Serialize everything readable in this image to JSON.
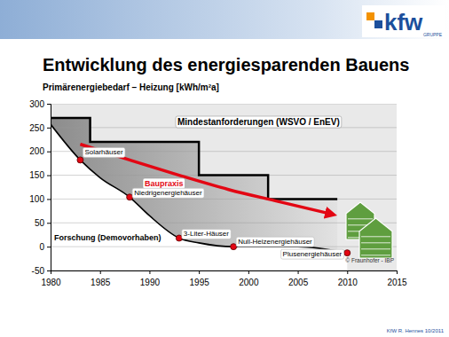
{
  "chart_data": {
    "type": "line",
    "title": "Entwicklung des energiesparenden Bauens",
    "subtitle": "Primärenergiebedarf – Heizung [kWh/m²a]",
    "xlim": [
      1980,
      2015
    ],
    "xticks": [
      1980,
      1985,
      1990,
      1995,
      2000,
      2005,
      2010,
      2015
    ],
    "ylim": [
      -50,
      300
    ],
    "yticks": [
      -50,
      0,
      50,
      100,
      150,
      200,
      250,
      300
    ],
    "grid": true,
    "series": [
      {
        "name": "Mindestanforderungen (WSVO / EnEV)",
        "type": "area",
        "color": "#000000",
        "line_style": "step",
        "x": [
          1980,
          1984,
          1995,
          2002,
          2009
        ],
        "values": [
          270,
          220,
          150,
          100,
          100
        ]
      },
      {
        "name": "Forschung (Demovorhaben)",
        "type": "area",
        "color": "#000000",
        "line_style": "solid",
        "x": [
          1980,
          1983,
          1985,
          1988,
          1990,
          1993,
          1995,
          1998.5,
          2005,
          2010
        ],
        "values": [
          257,
          182,
          145,
          104,
          65,
          18,
          8,
          0,
          0,
          -13
        ]
      },
      {
        "name": "Baupraxis",
        "type": "line",
        "color": "#e30613",
        "line_style": "solid",
        "marker": "arrow",
        "x": [
          1983,
          1988,
          1993,
          1998,
          2003,
          2008.5
        ],
        "values": [
          215,
          182,
          150,
          120,
          95,
          68
        ]
      }
    ],
    "annotations": [
      {
        "text": "Solarhäuser",
        "x": 1983,
        "y": 182,
        "marker": "circle"
      },
      {
        "text": "Niedrigenergiehäuser",
        "x": 1988,
        "y": 104,
        "marker": "circle"
      },
      {
        "text": "3-Liter-Häuser",
        "x": 1993,
        "y": 18,
        "marker": "circle"
      },
      {
        "text": "Null-Heizenergiehäuser",
        "x": 1998.5,
        "y": 0,
        "marker": "circle"
      },
      {
        "text": "Plusenergiehäuser",
        "x": 2010,
        "y": -13,
        "marker": "circle"
      },
      {
        "text": "© Fraunhofer - IBP",
        "x": 2015,
        "y": -42
      }
    ],
    "footer": "KfW R. Hennes 10/2011",
    "logo": "kfw",
    "logo_sub": "GRUPPE"
  }
}
